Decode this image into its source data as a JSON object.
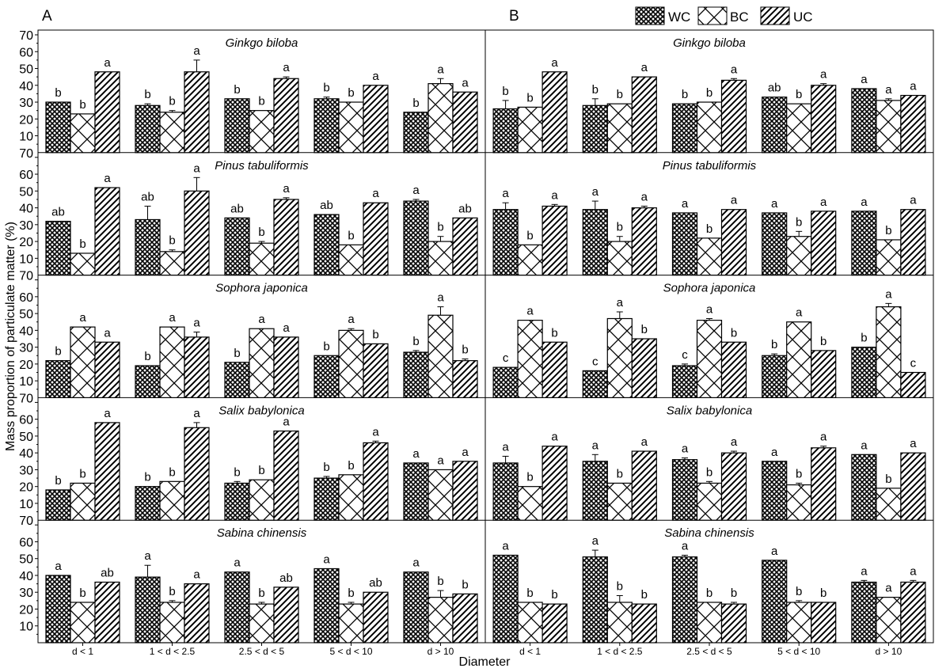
{
  "chart_data": {
    "type": "bar",
    "panel_labels": [
      "A",
      "B"
    ],
    "xlabel": "Diameter",
    "ylabel": "Mass proportion of particulate matter (%)",
    "categories": [
      "d < 1",
      "1 < d < 2.5",
      "2.5 < d < 5",
      "5 < d < 10",
      "d > 10"
    ],
    "legend": {
      "position": "top-right",
      "items": [
        {
          "name": "WC",
          "pattern": "crosshatch"
        },
        {
          "name": "BC",
          "pattern": "diagonal-cross"
        },
        {
          "name": "UC",
          "pattern": "diagonal"
        }
      ]
    },
    "y_ticks": [
      "10",
      "20",
      "30",
      "40",
      "50",
      "60",
      "70"
    ],
    "y_bottom_tick": "70",
    "ylim": [
      0,
      70
    ],
    "species": [
      "Ginkgo biloba",
      "Pinus tabuliformis",
      "Sophora japonica",
      "Salix babylonica",
      "Sabina chinensis"
    ],
    "panels": [
      {
        "label": "A",
        "rows": [
          {
            "species": "Ginkgo biloba",
            "series": [
              {
                "name": "WC",
                "values": [
                  30,
                  28,
                  32,
                  32,
                  24
                ],
                "errors": [
                  0,
                  1,
                  0,
                  1,
                  0
                ],
                "letters": [
                  "b",
                  "b",
                  "b",
                  "b",
                  "b"
                ]
              },
              {
                "name": "BC",
                "values": [
                  23,
                  24,
                  25,
                  30,
                  41
                ],
                "errors": [
                  0,
                  1,
                  0,
                  0,
                  3
                ],
                "letters": [
                  "b",
                  "b",
                  "b",
                  "b",
                  "a"
                ]
              },
              {
                "name": "UC",
                "values": [
                  48,
                  48,
                  44,
                  40,
                  36
                ],
                "errors": [
                  0,
                  7,
                  1,
                  0,
                  0
                ],
                "letters": [
                  "a",
                  "a",
                  "a",
                  "a",
                  "a"
                ]
              }
            ]
          },
          {
            "species": "Pinus tabuliformis",
            "series": [
              {
                "name": "WC",
                "values": [
                  32,
                  33,
                  34,
                  36,
                  44
                ],
                "errors": [
                  0,
                  8,
                  0,
                  0,
                  1
                ],
                "letters": [
                  "ab",
                  "ab",
                  "ab",
                  "ab",
                  "a"
                ]
              },
              {
                "name": "BC",
                "values": [
                  13,
                  14,
                  19,
                  18,
                  20
                ],
                "errors": [
                  0,
                  1,
                  1,
                  0,
                  3
                ],
                "letters": [
                  "b",
                  "b",
                  "b",
                  "b",
                  "b"
                ]
              },
              {
                "name": "UC",
                "values": [
                  52,
                  50,
                  45,
                  43,
                  34
                ],
                "errors": [
                  0,
                  8,
                  1,
                  0,
                  0
                ],
                "letters": [
                  "a",
                  "a",
                  "a",
                  "a",
                  "ab"
                ]
              }
            ]
          },
          {
            "species": "Sophora japonica",
            "series": [
              {
                "name": "WC",
                "values": [
                  22,
                  19,
                  21,
                  25,
                  27
                ],
                "errors": [
                  0,
                  0,
                  0,
                  0,
                  1
                ],
                "letters": [
                  "b",
                  "b",
                  "b",
                  "b",
                  "b"
                ]
              },
              {
                "name": "BC",
                "values": [
                  42,
                  42,
                  41,
                  40,
                  49
                ],
                "errors": [
                  0,
                  0,
                  0,
                  1,
                  5
                ],
                "letters": [
                  "a",
                  "a",
                  "a",
                  "a",
                  "a"
                ]
              },
              {
                "name": "UC",
                "values": [
                  33,
                  36,
                  36,
                  32,
                  22
                ],
                "errors": [
                  0,
                  3,
                  0,
                  0,
                  1
                ],
                "letters": [
                  "a",
                  "a",
                  "a",
                  "b",
                  "b"
                ]
              }
            ]
          },
          {
            "species": "Salix babylonica",
            "series": [
              {
                "name": "WC",
                "values": [
                  18,
                  20,
                  22,
                  25,
                  34
                ],
                "errors": [
                  0,
                  0,
                  1,
                  1,
                  0
                ],
                "letters": [
                  "b",
                  "b",
                  "b",
                  "b",
                  "a"
                ]
              },
              {
                "name": "BC",
                "values": [
                  22,
                  23,
                  24,
                  27,
                  30
                ],
                "errors": [
                  0,
                  0,
                  0,
                  0,
                  0
                ],
                "letters": [
                  "b",
                  "b",
                  "b",
                  "b",
                  "a"
                ]
              },
              {
                "name": "UC",
                "values": [
                  58,
                  55,
                  53,
                  46,
                  35
                ],
                "errors": [
                  0,
                  3,
                  0,
                  1,
                  0
                ],
                "letters": [
                  "a",
                  "a",
                  "a",
                  "a",
                  "a"
                ]
              }
            ]
          },
          {
            "species": "Sabina chinensis",
            "series": [
              {
                "name": "WC",
                "values": [
                  40,
                  39,
                  42,
                  44,
                  42
                ],
                "errors": [
                  0,
                  7,
                  0,
                  0,
                  0
                ],
                "letters": [
                  "a",
                  "a",
                  "a",
                  "a",
                  "a"
                ]
              },
              {
                "name": "BC",
                "values": [
                  24,
                  24,
                  23,
                  23,
                  27
                ],
                "errors": [
                  0,
                  1,
                  1,
                  1,
                  4
                ],
                "letters": [
                  "b",
                  "b",
                  "b",
                  "b",
                  "b"
                ]
              },
              {
                "name": "UC",
                "values": [
                  36,
                  35,
                  33,
                  30,
                  29
                ],
                "errors": [
                  0,
                  0,
                  0,
                  0,
                  0
                ],
                "letters": [
                  "ab",
                  "a",
                  "ab",
                  "ab",
                  "b"
                ]
              }
            ]
          }
        ]
      },
      {
        "label": "B",
        "rows": [
          {
            "species": "Ginkgo biloba",
            "series": [
              {
                "name": "WC",
                "values": [
                  26,
                  28,
                  29,
                  33,
                  38
                ],
                "errors": [
                  5,
                  4,
                  0,
                  0,
                  0
                ],
                "letters": [
                  "b",
                  "b",
                  "b",
                  "ab",
                  "a"
                ]
              },
              {
                "name": "BC",
                "values": [
                  27,
                  29,
                  30,
                  29,
                  31
                ],
                "errors": [
                  0,
                  0,
                  0,
                  0,
                  1
                ],
                "letters": [
                  "b",
                  "b",
                  "b",
                  "b",
                  "a"
                ]
              },
              {
                "name": "UC",
                "values": [
                  48,
                  45,
                  43,
                  40,
                  34
                ],
                "errors": [
                  0,
                  0,
                  1,
                  1,
                  0
                ],
                "letters": [
                  "a",
                  "a",
                  "a",
                  "a",
                  "a"
                ]
              }
            ]
          },
          {
            "species": "Pinus tabuliformis",
            "series": [
              {
                "name": "WC",
                "values": [
                  39,
                  39,
                  37,
                  37,
                  38
                ],
                "errors": [
                  4,
                  5,
                  0,
                  0,
                  0
                ],
                "letters": [
                  "a",
                  "a",
                  "a",
                  "a",
                  "a"
                ]
              },
              {
                "name": "BC",
                "values": [
                  18,
                  20,
                  22,
                  23,
                  21
                ],
                "errors": [
                  0,
                  3,
                  0,
                  3,
                  0
                ],
                "letters": [
                  "b",
                  "b",
                  "b",
                  "b",
                  "b"
                ]
              },
              {
                "name": "UC",
                "values": [
                  41,
                  40,
                  39,
                  38,
                  39
                ],
                "errors": [
                  1,
                  1,
                  0,
                  0,
                  0
                ],
                "letters": [
                  "a",
                  "a",
                  "a",
                  "a",
                  "a"
                ]
              }
            ]
          },
          {
            "species": "Sophora japonica",
            "series": [
              {
                "name": "WC",
                "values": [
                  18,
                  16,
                  19,
                  25,
                  30
                ],
                "errors": [
                  0,
                  0,
                  1,
                  1,
                  0
                ],
                "letters": [
                  "c",
                  "c",
                  "c",
                  "b",
                  "b"
                ]
              },
              {
                "name": "BC",
                "values": [
                  46,
                  47,
                  46,
                  45,
                  54
                ],
                "errors": [
                  0,
                  4,
                  1,
                  0,
                  2
                ],
                "letters": [
                  "a",
                  "a",
                  "a",
                  "a",
                  "a"
                ]
              },
              {
                "name": "UC",
                "values": [
                  33,
                  35,
                  33,
                  28,
                  15
                ],
                "errors": [
                  0,
                  0,
                  0,
                  0,
                  0
                ],
                "letters": [
                  "b",
                  "b",
                  "b",
                  "b",
                  "c"
                ]
              }
            ]
          },
          {
            "species": "Salix babylonica",
            "series": [
              {
                "name": "WC",
                "values": [
                  34,
                  35,
                  36,
                  35,
                  39
                ],
                "errors": [
                  4,
                  4,
                  1,
                  0,
                  0
                ],
                "letters": [
                  "a",
                  "a",
                  "a",
                  "a",
                  "a"
                ]
              },
              {
                "name": "BC",
                "values": [
                  20,
                  22,
                  22,
                  21,
                  19
                ],
                "errors": [
                  0,
                  0,
                  1,
                  1,
                  0
                ],
                "letters": [
                  "b",
                  "b",
                  "b",
                  "b",
                  "b"
                ]
              },
              {
                "name": "UC",
                "values": [
                  44,
                  41,
                  40,
                  43,
                  40
                ],
                "errors": [
                  0,
                  0,
                  1,
                  1,
                  0
                ],
                "letters": [
                  "a",
                  "a",
                  "a",
                  "a",
                  "a"
                ]
              }
            ]
          },
          {
            "species": "Sabina chinensis",
            "series": [
              {
                "name": "WC",
                "values": [
                  52,
                  51,
                  51,
                  49,
                  36
                ],
                "errors": [
                  0,
                  4,
                  1,
                  0,
                  1
                ],
                "letters": [
                  "a",
                  "a",
                  "a",
                  "a",
                  "a"
                ]
              },
              {
                "name": "BC",
                "values": [
                  24,
                  24,
                  24,
                  24,
                  27
                ],
                "errors": [
                  0,
                  4,
                  0,
                  1,
                  0
                ],
                "letters": [
                  "b",
                  "b",
                  "b",
                  "b",
                  "a"
                ]
              },
              {
                "name": "UC",
                "values": [
                  23,
                  23,
                  23,
                  24,
                  36
                ],
                "errors": [
                  0,
                  0,
                  1,
                  0,
                  1
                ],
                "letters": [
                  "b",
                  "b",
                  "b",
                  "b",
                  "a"
                ]
              }
            ]
          }
        ]
      }
    ]
  }
}
